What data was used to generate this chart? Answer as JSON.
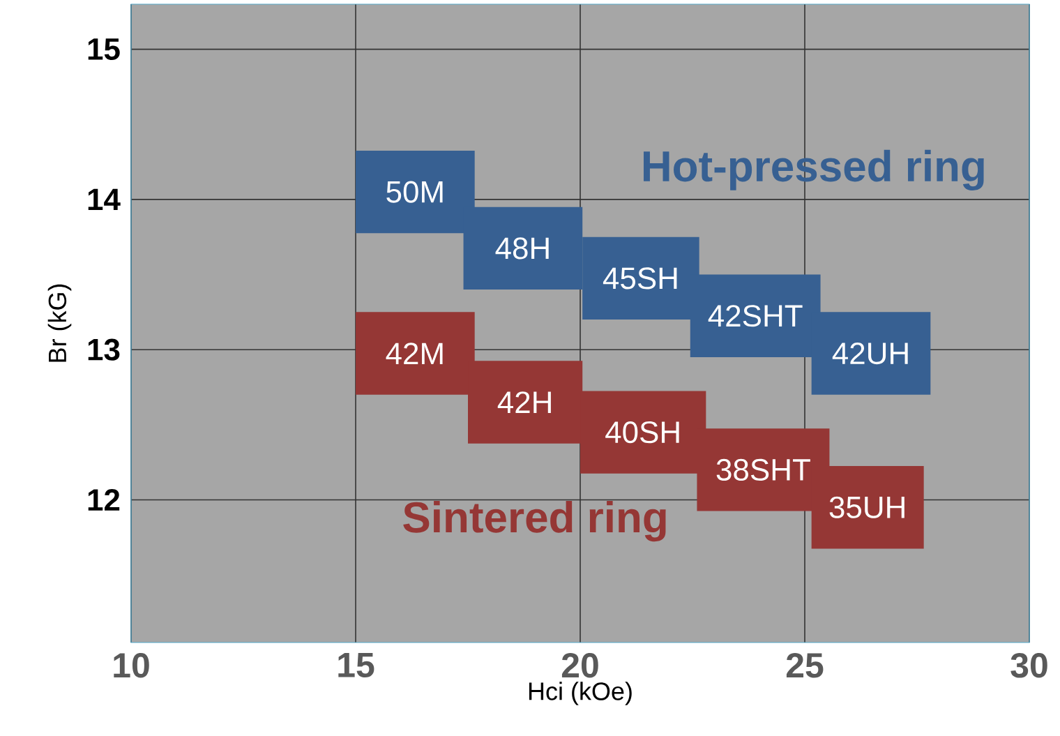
{
  "chart_data": {
    "type": "bar",
    "orientation": "horizontal",
    "xlabel": "Hci (kOe)",
    "ylabel": "Br (kG)",
    "xlim": [
      10,
      30
    ],
    "xticks": [
      10,
      15,
      20,
      25,
      30
    ],
    "ylim": [
      11.05,
      15.3
    ],
    "yticks": [
      12,
      13,
      14,
      15
    ],
    "grid": true,
    "series": [
      {
        "name": "Hot-pressed ring",
        "color": "#376092",
        "x": [
          14.05,
          13.675,
          13.475,
          13.225,
          12.975
        ],
        "base": [
          15,
          17.4,
          20.05,
          22.45,
          25.15
        ],
        "values": [
          2.65,
          2.65,
          2.6,
          2.9,
          2.65
        ]
      },
      {
        "name": "Sintered ring",
        "color": "#953735",
        "x": [
          12.975,
          12.65,
          12.45,
          12.2,
          11.95
        ],
        "base": [
          15,
          17.5,
          20,
          22.6,
          25.15
        ],
        "values": [
          2.65,
          2.55,
          2.8,
          2.95,
          2.5
        ]
      }
    ],
    "annotations": [
      "50M",
      "48H",
      "45SH",
      "42SHT",
      "42UH",
      "42M",
      "42H",
      "40SH",
      "38SHT",
      "35UH"
    ]
  }
}
